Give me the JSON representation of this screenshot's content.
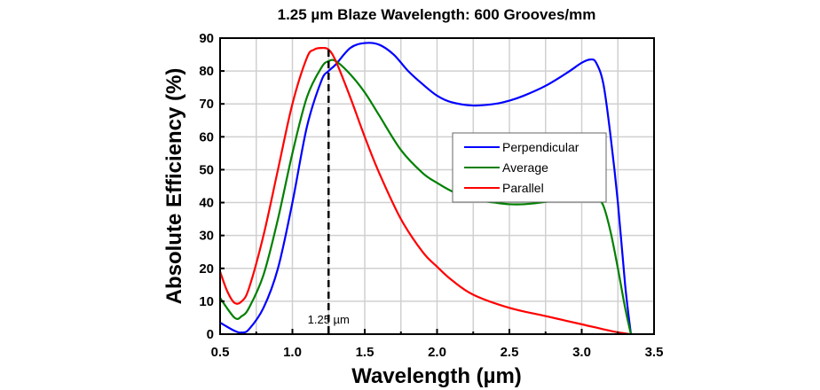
{
  "chart_data": {
    "type": "line",
    "title": "1.25 µm Blaze Wavelength: 600 Grooves/mm",
    "xlabel": "Wavelength (µm)",
    "ylabel": "Absolute Efficiency (%)",
    "xlim": [
      0.5,
      3.5
    ],
    "ylim": [
      0,
      90
    ],
    "xticks": [
      "0.5",
      "1.0",
      "1.5",
      "2.0",
      "2.5",
      "3.0",
      "3.5"
    ],
    "yticks": [
      "0",
      "10",
      "20",
      "30",
      "40",
      "50",
      "60",
      "70",
      "80",
      "90"
    ],
    "grid": true,
    "legend_position": "right-middle",
    "annotation": {
      "x": 1.25,
      "label": "1.25 µm"
    },
    "series": [
      {
        "name": "Perpendicular",
        "color": "#0000ff",
        "points": [
          [
            0.5,
            3.5
          ],
          [
            0.6,
            1
          ],
          [
            0.65,
            0.5
          ],
          [
            0.7,
            1.5
          ],
          [
            0.8,
            8
          ],
          [
            0.9,
            20
          ],
          [
            1.0,
            40
          ],
          [
            1.1,
            63
          ],
          [
            1.2,
            77
          ],
          [
            1.25,
            80
          ],
          [
            1.3,
            82
          ],
          [
            1.4,
            87
          ],
          [
            1.5,
            88.5
          ],
          [
            1.6,
            88
          ],
          [
            1.7,
            85
          ],
          [
            1.8,
            80
          ],
          [
            1.9,
            76
          ],
          [
            2.0,
            72.5
          ],
          [
            2.1,
            70.5
          ],
          [
            2.25,
            69.5
          ],
          [
            2.4,
            70
          ],
          [
            2.5,
            71
          ],
          [
            2.6,
            72.5
          ],
          [
            2.75,
            75.5
          ],
          [
            2.9,
            79.5
          ],
          [
            3.0,
            82.5
          ],
          [
            3.06,
            83.5
          ],
          [
            3.1,
            82.5
          ],
          [
            3.15,
            76
          ],
          [
            3.2,
            60
          ],
          [
            3.25,
            40
          ],
          [
            3.3,
            15
          ],
          [
            3.34,
            0
          ]
        ]
      },
      {
        "name": "Average",
        "color": "#008000",
        "points": [
          [
            0.5,
            11
          ],
          [
            0.6,
            5
          ],
          [
            0.65,
            5.5
          ],
          [
            0.7,
            8
          ],
          [
            0.8,
            18
          ],
          [
            0.9,
            35
          ],
          [
            1.0,
            55
          ],
          [
            1.1,
            72
          ],
          [
            1.2,
            81
          ],
          [
            1.25,
            83
          ],
          [
            1.3,
            83
          ],
          [
            1.4,
            79
          ],
          [
            1.5,
            73.5
          ],
          [
            1.6,
            66.5
          ],
          [
            1.75,
            56
          ],
          [
            1.9,
            49
          ],
          [
            2.0,
            46
          ],
          [
            2.1,
            43.5
          ],
          [
            2.25,
            41
          ],
          [
            2.4,
            40
          ],
          [
            2.5,
            39.5
          ],
          [
            2.6,
            39.5
          ],
          [
            2.75,
            40.2
          ],
          [
            2.9,
            41.5
          ],
          [
            3.0,
            42.5
          ],
          [
            3.06,
            42.8
          ],
          [
            3.1,
            42
          ],
          [
            3.15,
            39
          ],
          [
            3.2,
            31
          ],
          [
            3.25,
            20
          ],
          [
            3.3,
            8
          ],
          [
            3.34,
            0
          ]
        ]
      },
      {
        "name": "Parallel",
        "color": "#ff0000",
        "points": [
          [
            0.5,
            19
          ],
          [
            0.55,
            13
          ],
          [
            0.6,
            9.5
          ],
          [
            0.65,
            10
          ],
          [
            0.7,
            14
          ],
          [
            0.8,
            30
          ],
          [
            0.9,
            50
          ],
          [
            1.0,
            70
          ],
          [
            1.1,
            84
          ],
          [
            1.15,
            86.5
          ],
          [
            1.2,
            87
          ],
          [
            1.25,
            86.5
          ],
          [
            1.3,
            83
          ],
          [
            1.4,
            72
          ],
          [
            1.5,
            60
          ],
          [
            1.6,
            49
          ],
          [
            1.75,
            35
          ],
          [
            1.9,
            25
          ],
          [
            2.0,
            20.5
          ],
          [
            2.1,
            16.5
          ],
          [
            2.25,
            12
          ],
          [
            2.5,
            8
          ],
          [
            2.75,
            5.5
          ],
          [
            3.0,
            3
          ],
          [
            3.2,
            1
          ],
          [
            3.33,
            0
          ]
        ]
      }
    ]
  }
}
